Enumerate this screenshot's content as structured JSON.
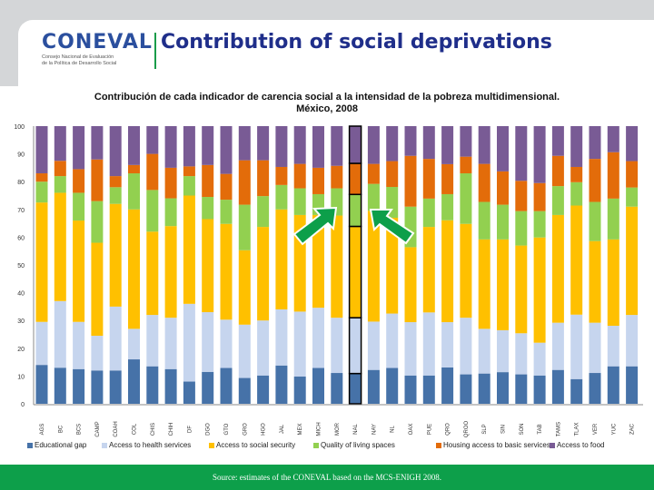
{
  "header": {
    "logo_text": "CONEVAL",
    "logo_subtitle_line1": "Consejo Nacional de Evaluación",
    "logo_subtitle_line2": "de la Política de Desarrollo Social",
    "title": "Contribution of social deprivations"
  },
  "colors": {
    "educational_gap": "#4672a8",
    "health": "#c6d5ee",
    "social_security": "#ffc000",
    "living_spaces": "#92d050",
    "basic_services": "#e36c0a",
    "food": "#795b95",
    "accent_green": "#0d9f4a",
    "title_blue": "#1f2e8a"
  },
  "chart_data": {
    "type": "bar",
    "stacked": true,
    "title_line1": "Contribución de cada indicador de carencia social a la intensidad de la pobreza multidimensional.",
    "title_line2": "México, 2008",
    "ylim": [
      0,
      100
    ],
    "yticks": [
      "0",
      "10",
      "20",
      "30",
      "40",
      "50",
      "60",
      "70",
      "80",
      "90",
      "100"
    ],
    "grid": false,
    "legend_placement": "bottom",
    "highlighted_category_index": 17,
    "categories": [
      "AGS",
      "BC",
      "BCS",
      "CAMP",
      "COAH",
      "COL",
      "CHIS",
      "CHIH",
      "DF",
      "DGO",
      "GTO",
      "GRO",
      "HGO",
      "JAL",
      "MEX",
      "MICH",
      "MOR",
      "NAL",
      "NAY",
      "NL",
      "OAX",
      "PUE",
      "QRO",
      "QROO",
      "SLP",
      "SIN",
      "SON",
      "TAB",
      "TAMS",
      "TLAX",
      "VER",
      "YUC",
      "ZAC"
    ],
    "series": [
      {
        "name": "Educational gap",
        "values": [
          14,
          13,
          12.5,
          12,
          12,
          16,
          13.5,
          12.5,
          8,
          11.5,
          12.9,
          9.3,
          10.2,
          13.8,
          9.8,
          12.9,
          11.1,
          10.9,
          12.2,
          12.9,
          10.2,
          10.2,
          13.1,
          10.6,
          10.9,
          11.4,
          10.6,
          10.2,
          12.2,
          8.9,
          11.1,
          13.5,
          13.5
        ]
      },
      {
        "name": "Access to health services",
        "values": [
          15.5,
          24,
          17,
          12.5,
          23,
          11,
          18.5,
          18.5,
          28,
          21.5,
          17.4,
          19.2,
          19.8,
          20.2,
          23.4,
          21.7,
          19.9,
          20.1,
          17.4,
          19.6,
          19.2,
          22.7,
          16.3,
          20.4,
          16.1,
          15.1,
          14.8,
          11.8,
          17,
          23.2,
          18.1,
          14.6,
          18.5
        ]
      },
      {
        "name": "Access to social security",
        "values": [
          43,
          39,
          36.5,
          33.5,
          37,
          43,
          30,
          33,
          39,
          33.5,
          34.5,
          26.8,
          33.7,
          36,
          34.8,
          33.4,
          36.8,
          32.9,
          39.9,
          34.5,
          27,
          30.8,
          36.7,
          33.8,
          32.2,
          32.7,
          31.6,
          37.9,
          38.8,
          39.3,
          29.4,
          31.1,
          39
        ]
      },
      {
        "name": "Quality of living spaces",
        "values": [
          7.5,
          6,
          10,
          15,
          6,
          13,
          15,
          10,
          7,
          8,
          8.7,
          16.4,
          11.1,
          8.8,
          9.6,
          7.5,
          9.8,
          11.5,
          9.7,
          11.1,
          14.6,
          10.2,
          9.4,
          18.2,
          13.5,
          12.5,
          12.4,
          9.5,
          10.4,
          8.4,
          14.1,
          14.7,
          6.9
        ]
      },
      {
        "name": "Housing access to basic services",
        "values": [
          3,
          5.5,
          8.5,
          15,
          4,
          3,
          13,
          11,
          3.5,
          11.5,
          9.3,
          16,
          12.9,
          6.5,
          8.8,
          9.5,
          8.1,
          11.2,
          7.2,
          9.3,
          18.3,
          14.3,
          10.8,
          6,
          13.7,
          12,
          10.9,
          10.1,
          10.9,
          5.5,
          15.5,
          16.7,
          9.5
        ]
      },
      {
        "name": "Access to food",
        "values": [
          17,
          12.5,
          15.5,
          12,
          18,
          14,
          10,
          15,
          14.5,
          14,
          17.2,
          12.3,
          12.3,
          14.7,
          13.6,
          15,
          14.3,
          13.4,
          13.6,
          12.6,
          10.7,
          11.8,
          13.7,
          11,
          13.6,
          16.3,
          19.7,
          20.5,
          10.7,
          14.7,
          11.8,
          9.4,
          12.6
        ]
      }
    ]
  },
  "footer": {
    "source": "Source: estimates of the CONEVAL based on the MCS-ENIGH 2008."
  }
}
